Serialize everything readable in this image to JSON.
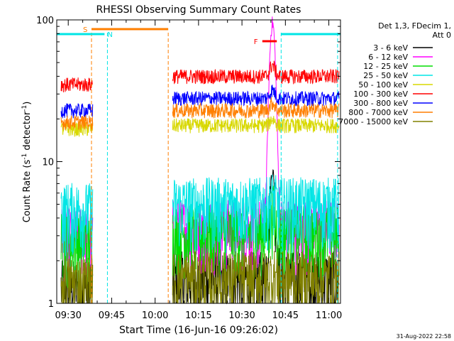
{
  "chart_data": {
    "type": "line",
    "title": "RHESSI Observing Summary Count Rates",
    "xlabel": "Start Time (16-Jun-16 09:26:02)",
    "ylabel_main": "Count Rate (s",
    "ylabel_sup1": "-1",
    "ylabel_mid": " detector",
    "ylabel_sup2": "-1",
    "ylabel_end": ")",
    "yscale": "log",
    "ylim": [
      1,
      100
    ],
    "xlim_minutes": [
      0,
      98
    ],
    "x_ticks": [
      {
        "label": "09:30",
        "m": 3.97
      },
      {
        "label": "09:45",
        "m": 18.97
      },
      {
        "label": "10:00",
        "m": 33.97
      },
      {
        "label": "10:15",
        "m": 48.97
      },
      {
        "label": "10:30",
        "m": 63.97
      },
      {
        "label": "10:45",
        "m": 78.97
      },
      {
        "label": "11:00",
        "m": 93.97
      }
    ],
    "y_ticks": [
      {
        "label": "1",
        "v": 1
      },
      {
        "label": "10",
        "v": 10
      },
      {
        "label": "100",
        "v": 100
      }
    ],
    "legend_header": [
      "Det 1,3, FDecim 1,",
      "Att 0"
    ],
    "legend_position": "right",
    "timestamp": "31-Aug-2022 22:58",
    "annotations": {
      "saa_label": "S",
      "night_label": "N",
      "flare_label": "F",
      "saa_bar_minutes": [
        12,
        38.5
      ],
      "night_bar_minutes": [
        [
          0,
          16.5
        ],
        [
          77.5,
          98
        ]
      ],
      "flare_bar_minutes": [
        71,
        76
      ],
      "vlines_minutes": [
        {
          "m": 12,
          "color": "#ff7f00"
        },
        {
          "m": 17.5,
          "color": "#00e5e5"
        },
        {
          "m": 38.5,
          "color": "#ff7f00"
        },
        {
          "m": 77.5,
          "color": "#00e5e5"
        },
        {
          "m": 97,
          "color": "#00e5e5"
        }
      ]
    },
    "data_gap_minutes": [
      12.5,
      40
    ],
    "series": [
      {
        "name": "3 - 6 keV",
        "color": "#000000",
        "values_pre": 1.3,
        "values_post": 1.5,
        "peak": 8.5
      },
      {
        "name": "6 - 12 keV",
        "color": "#ff00ff",
        "values_pre": 3.1,
        "values_post": 3.5,
        "peak": 95
      },
      {
        "name": "12 - 25 keV",
        "color": "#00dd00",
        "values_pre": 2.8,
        "values_post": 3.2,
        "peak": 4.5
      },
      {
        "name": "25 - 50 keV",
        "color": "#00e5e5",
        "values_pre": 4.6,
        "values_post": 5.0,
        "peak": 5.5
      },
      {
        "name": "50 - 100 keV",
        "color": "#d8d800",
        "values_pre": 17,
        "values_post": 18,
        "peak": 20
      },
      {
        "name": "100 - 300 keV",
        "color": "#ff0000",
        "values_pre": 35,
        "values_post": 40,
        "peak": 48
      },
      {
        "name": "300 - 800 keV",
        "color": "#0000ff",
        "values_pre": 23,
        "values_post": 28,
        "peak": 32
      },
      {
        "name": "800 - 7000 keV",
        "color": "#ff7f00",
        "values_pre": 19,
        "values_post": 23,
        "peak": 26
      },
      {
        "name": "7000 - 15000 keV",
        "color": "#808000",
        "values_pre": 1.4,
        "values_post": 1.5,
        "peak": 1.6
      }
    ]
  }
}
